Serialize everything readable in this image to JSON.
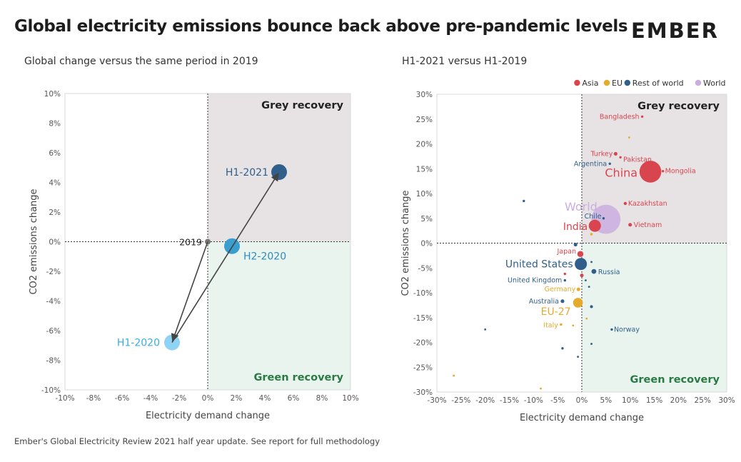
{
  "header": {
    "title": "Global electricity emissions bounce back above pre-pandemic levels",
    "logo_text": "EMBER"
  },
  "footer": {
    "note": "Ember's Global Electricity Review 2021 half year update. See report for full methodology"
  },
  "colors": {
    "grey_zone": "#e7e3e4",
    "green_zone": "#e9f4ee",
    "grey_label": "#222222",
    "green_label": "#2a7a45",
    "Asia": "#d9454f",
    "EU": "#e6aa2d",
    "Rest of world": "#2f5f8a",
    "World": "#c9aedf"
  },
  "chart_data": [
    {
      "type": "scatter",
      "title": "Global change versus the same period in 2019",
      "xlabel": "Electricity demand change",
      "ylabel": "CO2 emissions change",
      "xlim": [
        -10,
        10
      ],
      "ylim": [
        -10,
        10
      ],
      "xticks": [
        "-10%",
        "-8%",
        "-6%",
        "-4%",
        "-2%",
        "0%",
        "2%",
        "4%",
        "6%",
        "8%",
        "10%"
      ],
      "yticks": [
        "10%",
        "8%",
        "6%",
        "4%",
        "2%",
        "0%",
        "-2%",
        "-4%",
        "-6%",
        "-8%",
        "-10%"
      ],
      "quadrant_labels": {
        "top_right": "Grey recovery",
        "bottom_right": "Green recovery"
      },
      "grid": false,
      "points": [
        {
          "label": "2019",
          "x": 0,
          "y": 0,
          "color": "#777777"
        },
        {
          "label": "H1-2020",
          "x": -2.5,
          "y": -6.8,
          "color": "#8fd3f4"
        },
        {
          "label": "H2-2020",
          "x": 1.7,
          "y": -0.3,
          "color": "#3a9fd0"
        },
        {
          "label": "H1-2021",
          "x": 5.0,
          "y": 4.7,
          "color": "#2f5f8a"
        }
      ],
      "arrows": [
        [
          "2019",
          "H1-2020"
        ],
        [
          "H1-2020",
          "H1-2021"
        ]
      ]
    },
    {
      "type": "scatter",
      "title": "H1-2021 versus H1-2019",
      "xlabel": "Electricity demand change",
      "ylabel": "CO2 emissions change",
      "xlim": [
        -30,
        30
      ],
      "ylim": [
        -30,
        30
      ],
      "xticks": [
        "-30%",
        "-25%",
        "-20%",
        "-15%",
        "-10%",
        "-5%",
        "0%",
        "5%",
        "10%",
        "15%",
        "20%",
        "25%",
        "30%"
      ],
      "yticks": [
        "30%",
        "25%",
        "20%",
        "15%",
        "10%",
        "5%",
        "0%",
        "-5%",
        "-10%",
        "-15%",
        "-20%",
        "-25%",
        "-30%"
      ],
      "legend_position": "top-right",
      "legend": [
        "Asia",
        "EU",
        "Rest of world",
        "World"
      ],
      "quadrant_labels": {
        "top_right": "Grey recovery",
        "bottom_right": "Green recovery"
      },
      "grid": false,
      "points": [
        {
          "label": "Bangladesh",
          "group": "Asia",
          "x": 12.5,
          "y": 25.5,
          "size": 1
        },
        {
          "label": "Turkey",
          "group": "Asia",
          "x": 7,
          "y": 18,
          "size": 1.5
        },
        {
          "label": "Pakistan",
          "group": "Asia",
          "x": 8,
          "y": 17.3,
          "size": 1
        },
        {
          "label": "Argentina",
          "group": "Rest of world",
          "x": 5.8,
          "y": 16,
          "size": 1
        },
        {
          "label": "China",
          "group": "Asia",
          "x": 14.2,
          "y": 14.4,
          "size": 9
        },
        {
          "label": "Mongolia",
          "group": "Asia",
          "x": 16.8,
          "y": 14.5,
          "size": 1
        },
        {
          "label": "Kazakhstan",
          "group": "Asia",
          "x": 9,
          "y": 8,
          "size": 1.3
        },
        {
          "label": "World",
          "group": "World",
          "x": 5,
          "y": 4.8,
          "size": 12
        },
        {
          "label": "Chile",
          "group": "Rest of world",
          "x": 4.5,
          "y": 5,
          "size": 1
        },
        {
          "label": "Vietnam",
          "group": "Asia",
          "x": 10,
          "y": 3.7,
          "size": 1.5
        },
        {
          "label": "India",
          "group": "Asia",
          "x": 2.7,
          "y": 3.5,
          "size": 5
        },
        {
          "label": "Japan",
          "group": "Asia",
          "x": -0.3,
          "y": -2.2,
          "size": 2.5
        },
        {
          "label": "United States",
          "group": "Rest of world",
          "x": -0.2,
          "y": -4.2,
          "size": 5
        },
        {
          "label": "Russia",
          "group": "Rest of world",
          "x": 2.5,
          "y": -5.7,
          "size": 2
        },
        {
          "label": "United Kingdom",
          "group": "Rest of world",
          "x": -3.5,
          "y": -7.5,
          "size": 1
        },
        {
          "label": "Germany",
          "group": "EU",
          "x": -0.7,
          "y": -9.3,
          "size": 1.5
        },
        {
          "label": "Australia",
          "group": "Rest of world",
          "x": -4,
          "y": -11.7,
          "size": 1.5
        },
        {
          "label": "EU-27",
          "group": "EU",
          "x": -0.8,
          "y": -12,
          "size": 4
        },
        {
          "label": "Italy",
          "group": "EU",
          "x": -4.3,
          "y": -16.4,
          "size": 1
        },
        {
          "label": "Norway",
          "group": "Rest of world",
          "x": 6.2,
          "y": -17.4,
          "size": 1
        },
        {
          "label": "",
          "group": "Rest of world",
          "x": -12,
          "y": 8.5,
          "size": 1
        },
        {
          "label": "",
          "group": "EU",
          "x": 9.8,
          "y": 21.3,
          "size": 0.8
        },
        {
          "label": "",
          "group": "EU",
          "x": 2,
          "y": 1.8,
          "size": 1
        },
        {
          "label": "",
          "group": "Rest of world",
          "x": -1.3,
          "y": -0.3,
          "size": 1.5
        },
        {
          "label": "",
          "group": "Rest of world",
          "x": 2,
          "y": -3.8,
          "size": 0.8
        },
        {
          "label": "",
          "group": "Asia",
          "x": -3.5,
          "y": -6.2,
          "size": 1
        },
        {
          "label": "",
          "group": "Asia",
          "x": 0,
          "y": -6.5,
          "size": 1.5
        },
        {
          "label": "",
          "group": "Rest of world",
          "x": 0.8,
          "y": -7.5,
          "size": 0.8
        },
        {
          "label": "",
          "group": "Rest of world",
          "x": 1.5,
          "y": -8.8,
          "size": 0.8
        },
        {
          "label": "",
          "group": "Rest of world",
          "x": 2,
          "y": -12.8,
          "size": 1.2
        },
        {
          "label": "",
          "group": "EU",
          "x": 1,
          "y": -15.2,
          "size": 0.8
        },
        {
          "label": "",
          "group": "EU",
          "x": -1.8,
          "y": -16.6,
          "size": 0.8
        },
        {
          "label": "",
          "group": "Rest of world",
          "x": -20,
          "y": -17.4,
          "size": 0.8
        },
        {
          "label": "",
          "group": "Rest of world",
          "x": 2,
          "y": -20.3,
          "size": 0.8
        },
        {
          "label": "",
          "group": "Rest of world",
          "x": -4,
          "y": -21.2,
          "size": 1
        },
        {
          "label": "",
          "group": "Rest of world",
          "x": -0.8,
          "y": -22.9,
          "size": 0.8
        },
        {
          "label": "",
          "group": "EU",
          "x": -26.5,
          "y": -26.7,
          "size": 0.8
        },
        {
          "label": "",
          "group": "EU",
          "x": -8.5,
          "y": -29.3,
          "size": 0.8
        }
      ]
    }
  ]
}
